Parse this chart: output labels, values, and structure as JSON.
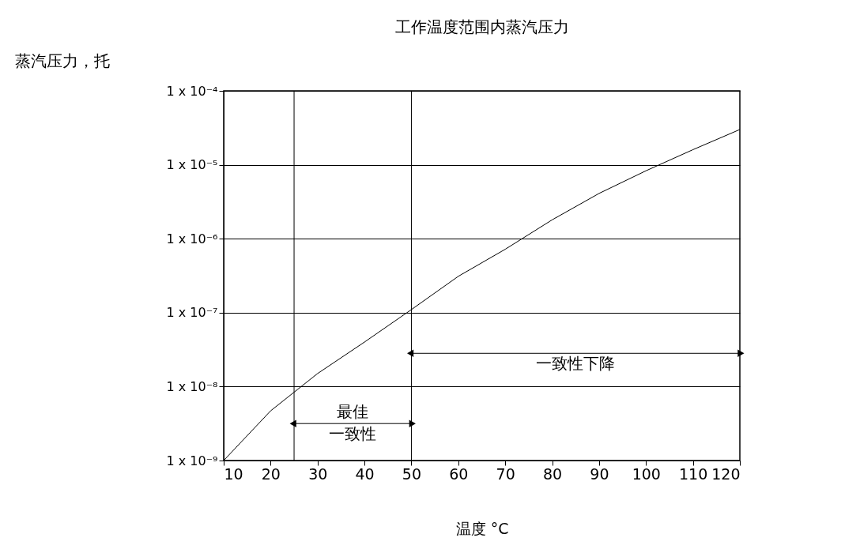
{
  "chart_data": {
    "type": "line",
    "title": "工作温度范围内蒸汽压力",
    "xlabel": "温度 °C",
    "ylabel": "蒸汽压力，托",
    "x": [
      10,
      20,
      30,
      40,
      50,
      60,
      70,
      80,
      90,
      100,
      110,
      120
    ],
    "series": [
      {
        "color": "#000000",
        "values": [
          1e-09,
          4.7e-09,
          1.5e-08,
          4e-08,
          1.1e-07,
          3.1e-07,
          7.2e-07,
          1.8e-06,
          4.1e-06,
          8.3e-06,
          1.6e-05,
          3e-05
        ]
      }
    ],
    "log": "y",
    "grid": "y",
    "marker": "none",
    "line_style": "solid",
    "xlim": [
      10,
      120
    ],
    "xticks": [
      10,
      20,
      30,
      40,
      50,
      60,
      70,
      80,
      90,
      100,
      110,
      120
    ],
    "ylim": [
      1e-09,
      0.0001
    ],
    "yticks": [
      {
        "value": 1e-09,
        "label": "1 x 10⁻⁹"
      },
      {
        "value": 1e-08,
        "label": "1 x 10⁻⁸"
      },
      {
        "value": 1e-07,
        "label": "1 x 10⁻⁷"
      },
      {
        "value": 1e-06,
        "label": "1 x 10⁻⁶"
      },
      {
        "value": 1e-05,
        "label": "1 x 10⁻⁵"
      },
      {
        "value": 0.0001,
        "label": "1 x 10⁻⁴"
      }
    ],
    "ref_lines": [
      {
        "axis": "x",
        "value": 25,
        "color": "#000000"
      },
      {
        "axis": "x",
        "value": 50,
        "color": "#000000"
      }
    ],
    "annotations": [
      "最佳一致性",
      "一致性下降"
    ]
  }
}
